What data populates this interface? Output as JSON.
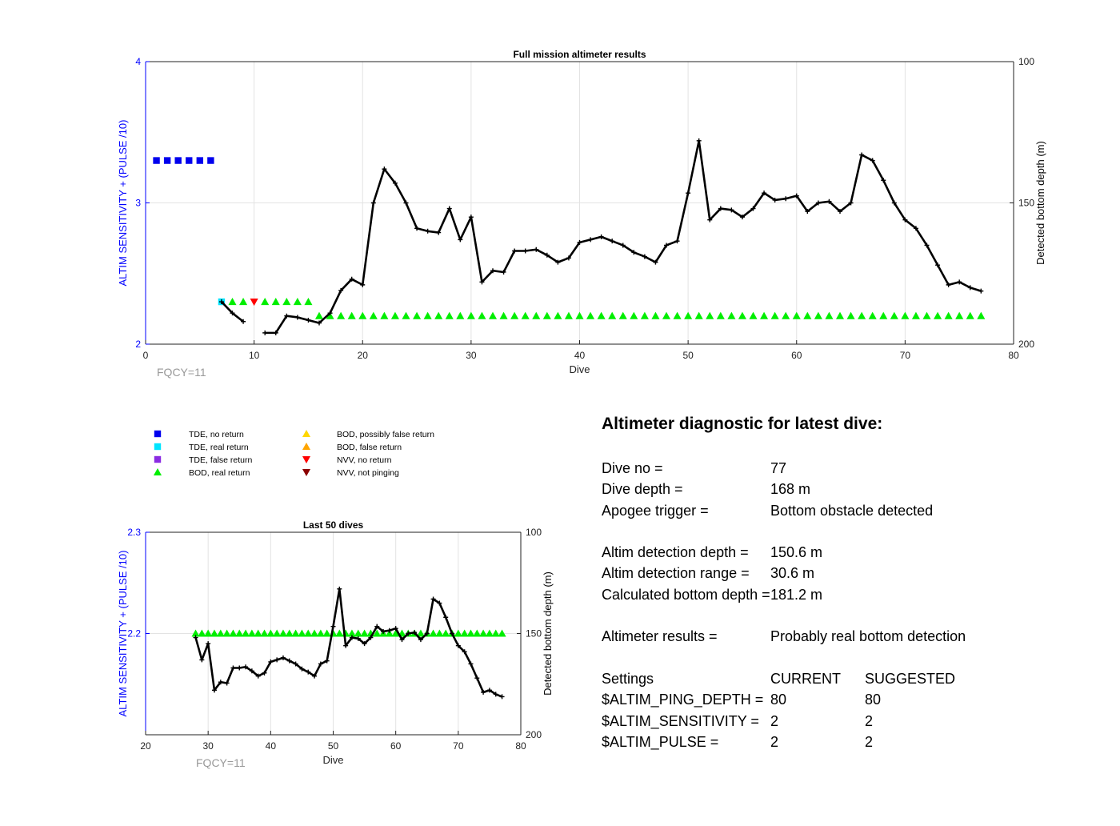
{
  "colors": {
    "left_axis": "#0000ff",
    "fqcy": "#999999",
    "tde_no_return": "#0000ee",
    "tde_real_return": "#00e5ff",
    "tde_false_return": "#8a2be2",
    "bod_real_return": "#00ee00",
    "bod_possibly_false": "#ffd700",
    "bod_false_return": "#ffa500",
    "nvv_no_return": "#ff0000",
    "nvv_not_pinging": "#8b0000",
    "line": "#000000"
  },
  "legend": [
    {
      "label": "TDE, no return",
      "marker": "square",
      "color_key": "tde_no_return"
    },
    {
      "label": "TDE, real return",
      "marker": "square",
      "color_key": "tde_real_return"
    },
    {
      "label": "TDE, false return",
      "marker": "square",
      "color_key": "tde_false_return"
    },
    {
      "label": "BOD, real return",
      "marker": "triangle-up",
      "color_key": "bod_real_return"
    },
    {
      "label": "BOD, possibly false return",
      "marker": "triangle-up",
      "color_key": "bod_possibly_false"
    },
    {
      "label": "BOD, false return",
      "marker": "triangle-up",
      "color_key": "bod_false_return"
    },
    {
      "label": "NVV, no return",
      "marker": "triangle-down",
      "color_key": "nvv_no_return"
    },
    {
      "label": "NVV, not pinging",
      "marker": "triangle-down",
      "color_key": "nvv_not_pinging"
    }
  ],
  "chart_data": [
    {
      "type": "scatter+line",
      "title": "Full mission altimeter results",
      "xlabel": "Dive",
      "ylabel_left": "ALTIM SENSITIVITY + (PULSE /10)",
      "ylabel_right": "Detected bottom depth (m)",
      "annotation": "FQCY=11",
      "xlim": [
        0,
        80
      ],
      "ylim_left": [
        2,
        4
      ],
      "ylim_right": [
        200,
        100
      ],
      "xticks": [
        "0",
        "10",
        "20",
        "30",
        "40",
        "50",
        "60",
        "70",
        "80"
      ],
      "yticks_left": [
        "2",
        "3",
        "4"
      ],
      "yticks_right": [
        "100",
        "150",
        "200"
      ],
      "grid": true,
      "markers": [
        {
          "kind": "tde_no_return",
          "x": [
            1,
            2,
            3,
            4,
            5,
            6
          ],
          "y": 3.3
        },
        {
          "kind": "tde_real_return",
          "x": [
            7
          ],
          "y": 2.3
        },
        {
          "kind": "bod_real_return",
          "x": [
            8,
            9,
            11,
            12,
            13,
            14,
            15
          ],
          "y": 2.3
        },
        {
          "kind": "nvv_no_return",
          "x": [
            10
          ],
          "y": 2.3
        },
        {
          "kind": "bod_real_return",
          "x": [
            16,
            17,
            18,
            19,
            20,
            21,
            22,
            23,
            24,
            25,
            26,
            27,
            28,
            29,
            30,
            31,
            32,
            33,
            34,
            35,
            36,
            37,
            38,
            39,
            40,
            41,
            42,
            43,
            44,
            45,
            46,
            47,
            48,
            49,
            50,
            51,
            52,
            53,
            54,
            55,
            56,
            57,
            58,
            59,
            60,
            61,
            62,
            63,
            64,
            65,
            66,
            67,
            68,
            69,
            70,
            71,
            72,
            73,
            74,
            75,
            76,
            77
          ],
          "y": 2.2
        }
      ],
      "depth_segments": [
        {
          "x": [
            7,
            8,
            9
          ],
          "y": [
            185,
            189,
            192
          ]
        },
        {
          "x": [
            11,
            12,
            13,
            14,
            15,
            16,
            17,
            18,
            19,
            20,
            21,
            22,
            23,
            24,
            25,
            26,
            27,
            28,
            29,
            30,
            31,
            32,
            33,
            34,
            35,
            36,
            37,
            38,
            39,
            40,
            41,
            42,
            43,
            44,
            45,
            46,
            47,
            48,
            49,
            50,
            51,
            52,
            53,
            54,
            55,
            56,
            57,
            58,
            59,
            60,
            61,
            62,
            63,
            64,
            65,
            66,
            67,
            68,
            69,
            70,
            71,
            72,
            73,
            74,
            75,
            76,
            77
          ],
          "y": [
            196,
            196,
            190,
            190.5,
            191.5,
            192.5,
            189,
            181,
            177,
            179,
            150,
            138,
            143,
            150,
            159,
            160,
            160.5,
            152,
            163,
            155,
            178,
            174,
            174.5,
            167,
            167,
            166.5,
            168.5,
            171,
            169.5,
            164,
            163,
            162,
            163.5,
            165,
            167.5,
            169,
            171,
            165,
            163.5,
            146.5,
            128,
            156,
            152,
            152.5,
            155,
            152,
            146.5,
            149,
            148.5,
            147.5,
            153,
            150,
            149.5,
            153,
            150,
            133,
            135,
            142,
            150,
            156,
            159,
            165,
            172,
            179,
            178,
            180,
            181.2
          ]
        }
      ]
    },
    {
      "type": "scatter+line",
      "title": "Last 50 dives",
      "xlabel": "Dive",
      "ylabel_left": "ALTIM SENSITIVITY + (PULSE /10)",
      "ylabel_right": "Detected bottom depth (m)",
      "annotation": "FQCY=11",
      "xlim": [
        20,
        80
      ],
      "ylim_left": [
        2.1,
        2.3
      ],
      "ylim_right": [
        200,
        100
      ],
      "xticks": [
        "20",
        "30",
        "40",
        "50",
        "60",
        "70",
        "80"
      ],
      "yticks_left": [
        "2.2",
        "2.3"
      ],
      "yticks_right": [
        "100",
        "150",
        "200"
      ],
      "grid": true,
      "markers": [
        {
          "kind": "bod_real_return",
          "x": [
            28,
            29,
            30,
            31,
            32,
            33,
            34,
            35,
            36,
            37,
            38,
            39,
            40,
            41,
            42,
            43,
            44,
            45,
            46,
            47,
            48,
            49,
            50,
            51,
            52,
            53,
            54,
            55,
            56,
            57,
            58,
            59,
            60,
            61,
            62,
            63,
            64,
            65,
            66,
            67,
            68,
            69,
            70,
            71,
            72,
            73,
            74,
            75,
            76,
            77
          ],
          "y": 2.2
        }
      ],
      "depth_segments": [
        {
          "x": [
            28,
            29,
            30,
            31,
            32,
            33,
            34,
            35,
            36,
            37,
            38,
            39,
            40,
            41,
            42,
            43,
            44,
            45,
            46,
            47,
            48,
            49,
            50,
            51,
            52,
            53,
            54,
            55,
            56,
            57,
            58,
            59,
            60,
            61,
            62,
            63,
            64,
            65,
            66,
            67,
            68,
            69,
            70,
            71,
            72,
            73,
            74,
            75,
            76,
            77
          ],
          "y": [
            152,
            163,
            155,
            178,
            174,
            174.5,
            167,
            167,
            166.5,
            168.5,
            171,
            169.5,
            164,
            163,
            162,
            163.5,
            165,
            167.5,
            169,
            171,
            165,
            163.5,
            146.5,
            128,
            156,
            152,
            152.5,
            155,
            152,
            146.5,
            149,
            148.5,
            147.5,
            153,
            150,
            149.5,
            153,
            150,
            133,
            135,
            142,
            150,
            156,
            159,
            165,
            172,
            179,
            178,
            180,
            181.2
          ]
        }
      ]
    }
  ],
  "diagnostic": {
    "title": "Altimeter diagnostic for latest dive:",
    "dive_no_label": "Dive no =",
    "dive_no_value": "77",
    "dive_depth_label": "Dive depth =",
    "dive_depth_value": "168 m",
    "apogee_label": "Apogee trigger =",
    "apogee_value": "Bottom obstacle detected",
    "altim_det_depth_label": "Altim detection depth =",
    "altim_det_depth_value": "150.6 m",
    "altim_det_range_label": "Altim detection range =",
    "altim_det_range_value": "30.6 m",
    "calc_bottom_label": "Calculated bottom depth =",
    "calc_bottom_value": "181.2 m",
    "results_label": "Altimeter results =",
    "results_value": "Probably real bottom detection",
    "settings_label": "Settings",
    "current_label": "CURRENT",
    "suggested_label": "SUGGESTED",
    "ping_depth_label": "$ALTIM_PING_DEPTH =",
    "ping_depth_current": "80",
    "ping_depth_suggested": "80",
    "sensitivity_label": "$ALTIM_SENSITIVITY =",
    "sensitivity_current": "2",
    "sensitivity_suggested": "2",
    "pulse_label": "$ALTIM_PULSE =",
    "pulse_current": "2",
    "pulse_suggested": "2"
  }
}
